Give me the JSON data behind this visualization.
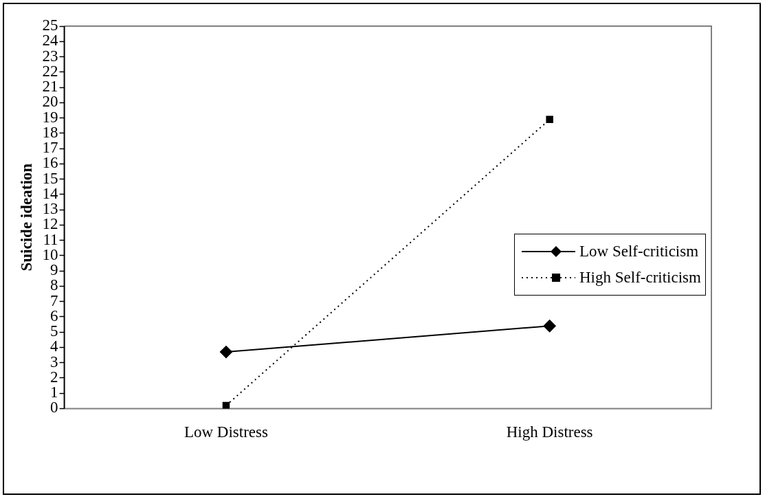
{
  "chart_data": {
    "type": "line",
    "ylabel": "Suicide ideation",
    "categories": [
      "Low Distress",
      "High Distress"
    ],
    "series": [
      {
        "name": "Low Self-criticism",
        "color": "#000000",
        "values": [
          3.7,
          5.4
        ],
        "marker": "diamond",
        "line_style": "solid"
      },
      {
        "name": "High Self-criticism",
        "color": "#000000",
        "values": [
          0.2,
          18.9
        ],
        "marker": "square",
        "line_style": "dotted"
      }
    ],
    "ylim": [
      0,
      25
    ],
    "yticks": [
      0,
      1,
      2,
      3,
      4,
      5,
      6,
      7,
      8,
      9,
      10,
      11,
      12,
      13,
      14,
      15,
      16,
      17,
      18,
      19,
      20,
      21,
      22,
      23,
      24,
      25
    ],
    "grid": false,
    "legend": "right"
  }
}
